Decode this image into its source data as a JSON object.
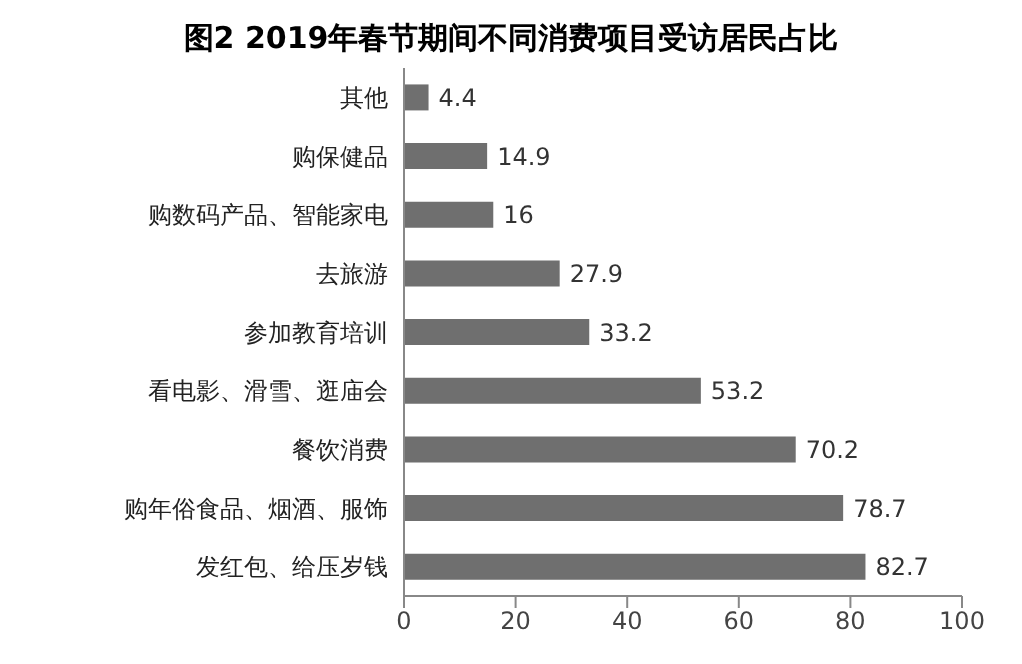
{
  "chart_data": {
    "type": "bar",
    "orientation": "horizontal",
    "title": "图2 2019年春节期间不同消费项目受访居民占比",
    "categories": [
      "其他",
      "购保健品",
      "购数码产品、智能家电",
      "去旅游",
      "参加教育培训",
      "看电影、滑雪、逛庙会",
      "餐饮消费",
      "购年俗食品、烟酒、服饰",
      "发红包、给压岁钱"
    ],
    "values": [
      4.4,
      14.9,
      16,
      27.9,
      33.2,
      53.2,
      70.2,
      78.7,
      82.7
    ],
    "color": "#6f6f6f",
    "xlim": [
      0,
      100
    ],
    "xticks": [
      0,
      20,
      40,
      60,
      80,
      100
    ],
    "grid": false,
    "data_labels": true,
    "legend": false
  }
}
